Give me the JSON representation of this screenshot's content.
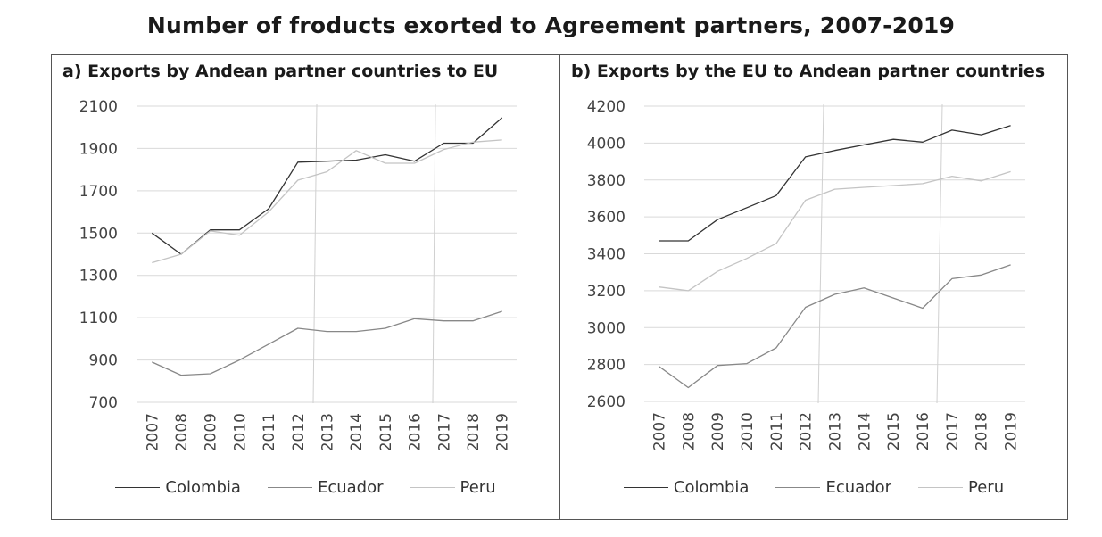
{
  "title": "Number of froducts exorted to Agreement partners, 2007-2019",
  "chart_data": [
    {
      "type": "line",
      "title": "a) Exports by Andean partner countries to EU",
      "x": [
        "2007",
        "2008",
        "2009",
        "2010",
        "2011",
        "2012",
        "2013",
        "2014",
        "2015",
        "2016",
        "2017",
        "2018",
        "2019"
      ],
      "ylim": [
        700,
        2100
      ],
      "yticks": [
        700,
        900,
        1100,
        1300,
        1500,
        1700,
        1900,
        2100
      ],
      "legend_position": "bottom",
      "series": [
        {
          "name": "Colombia",
          "color": "#333333",
          "values": [
            1500,
            1400,
            1515,
            1515,
            1615,
            1835,
            1840,
            1845,
            1870,
            1840,
            1925,
            1925,
            2045
          ]
        },
        {
          "name": "Ecuador",
          "color": "#888888",
          "values": [
            890,
            828,
            835,
            900,
            975,
            1050,
            1035,
            1035,
            1050,
            1095,
            1085,
            1085,
            1130
          ]
        },
        {
          "name": "Peru",
          "color": "#c4c4c4",
          "values": [
            1360,
            1400,
            1510,
            1490,
            1600,
            1750,
            1790,
            1890,
            1830,
            1830,
            1895,
            1930,
            1940
          ]
        }
      ]
    },
    {
      "type": "line",
      "title": "b)  Exports by the EU to Andean partner countries",
      "x": [
        "2007",
        "2008",
        "2009",
        "2010",
        "2011",
        "2012",
        "2013",
        "2014",
        "2015",
        "2016",
        "2017",
        "2018",
        "2019"
      ],
      "ylim": [
        2600,
        4200
      ],
      "yticks": [
        2600,
        2800,
        3000,
        3200,
        3400,
        3600,
        3800,
        4000,
        4200
      ],
      "legend_position": "bottom",
      "series": [
        {
          "name": "Colombia",
          "color": "#333333",
          "values": [
            3470,
            3470,
            3585,
            3650,
            3715,
            3925,
            3960,
            3990,
            4020,
            4005,
            4070,
            4045,
            4095
          ]
        },
        {
          "name": "Ecuador",
          "color": "#888888",
          "values": [
            2790,
            2675,
            2795,
            2805,
            2890,
            3110,
            3180,
            3215,
            3160,
            3105,
            3265,
            3285,
            3340
          ]
        },
        {
          "name": "Peru",
          "color": "#c4c4c4",
          "values": [
            3220,
            3200,
            3305,
            3375,
            3455,
            3690,
            3750,
            3760,
            3770,
            3780,
            3820,
            3795,
            3845
          ]
        }
      ]
    }
  ]
}
